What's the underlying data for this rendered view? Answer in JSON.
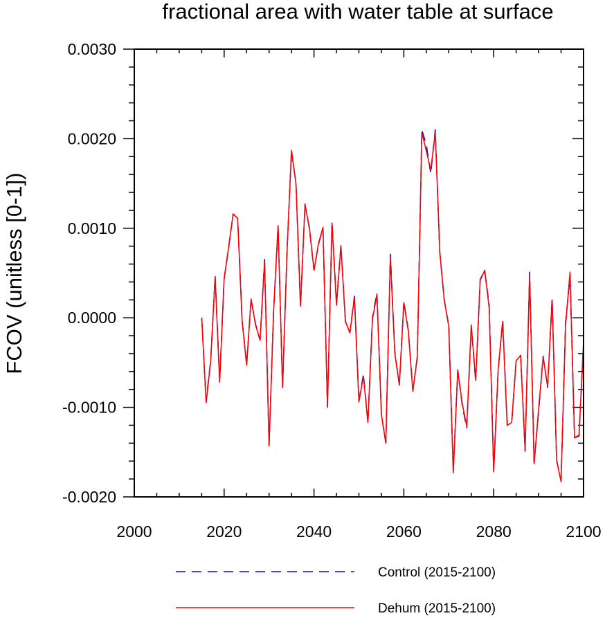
{
  "chart_data": {
    "type": "line",
    "title": "fractional area with water table at surface",
    "ylabel": "FCOV  (unitless [0-1])",
    "xlabel": "",
    "xlim": [
      2000,
      2100
    ],
    "ylim": [
      -0.002,
      0.003
    ],
    "x_ticks": [
      2000,
      2020,
      2040,
      2060,
      2080,
      2100
    ],
    "x_tick_labels": [
      "2000",
      "2020",
      "2040",
      "2060",
      "2080",
      "2100"
    ],
    "y_ticks": [
      -0.002,
      -0.001,
      0.0,
      0.001,
      0.002,
      0.003
    ],
    "y_tick_labels": [
      "-0.0020",
      "-0.0010",
      "0.0000",
      "0.0010",
      "0.0020",
      "0.0030"
    ],
    "grid": false,
    "legend_position": "bottom",
    "x": [
      2015,
      2016,
      2017,
      2018,
      2019,
      2020,
      2021,
      2022,
      2023,
      2024,
      2025,
      2026,
      2027,
      2028,
      2029,
      2030,
      2031,
      2032,
      2033,
      2034,
      2035,
      2036,
      2037,
      2038,
      2039,
      2040,
      2041,
      2042,
      2043,
      2044,
      2045,
      2046,
      2047,
      2048,
      2049,
      2050,
      2051,
      2052,
      2053,
      2054,
      2055,
      2056,
      2057,
      2058,
      2059,
      2060,
      2061,
      2062,
      2063,
      2064,
      2065,
      2066,
      2067,
      2068,
      2069,
      2070,
      2071,
      2072,
      2073,
      2074,
      2075,
      2076,
      2077,
      2078,
      2079,
      2080,
      2081,
      2082,
      2083,
      2084,
      2085,
      2086,
      2087,
      2088,
      2089,
      2090,
      2091,
      2092,
      2093,
      2094,
      2095,
      2096,
      2097,
      2098,
      2099,
      2100
    ],
    "series": [
      {
        "name": "Control (2015-2100)",
        "color": "#0000ff",
        "dash": "dashed",
        "values": [
          0.0,
          -0.00093,
          -0.00048,
          0.00046,
          -0.0007,
          0.00043,
          0.00078,
          0.00116,
          0.00111,
          -3e-05,
          -0.00052,
          0.0002,
          -7e-05,
          -0.00025,
          0.00065,
          -0.00143,
          7e-05,
          0.00102,
          -0.00078,
          0.00075,
          0.00186,
          0.0015,
          0.00013,
          0.00127,
          0.00099,
          0.00053,
          0.00082,
          0.001,
          -0.00099,
          0.00107,
          0.00016,
          0.00081,
          -4e-05,
          -0.00016,
          0.00024,
          -0.00093,
          -0.00063,
          -0.00117,
          0.0,
          0.00028,
          -0.00108,
          -0.0014,
          0.00071,
          -0.00038,
          -0.00075,
          0.00018,
          -0.00014,
          -0.00082,
          -0.00043,
          0.0021,
          0.00193,
          0.00161,
          0.0021,
          0.00073,
          0.00019,
          -8e-05,
          -0.00171,
          -0.00058,
          -0.00098,
          -0.00123,
          -0.0001,
          -0.00071,
          0.00043,
          0.00053,
          0.00014,
          -0.0017,
          -0.00058,
          -3e-05,
          -0.0012,
          -0.00117,
          -0.00048,
          -0.00042,
          -0.00149,
          0.00051,
          -0.00162,
          -0.00105,
          -0.00043,
          -0.00078,
          0.00022,
          -0.00159,
          -0.00182,
          -5e-05,
          0.00045,
          -0.00134,
          -0.00132,
          -0.00027
        ]
      },
      {
        "name": "Dehum (2015-2100)",
        "color": "#ff0000",
        "dash": "solid",
        "values": [
          0.0,
          -0.00095,
          -0.00049,
          0.00046,
          -0.00072,
          0.00044,
          0.00079,
          0.00116,
          0.00111,
          -4e-05,
          -0.00053,
          0.00021,
          -8e-05,
          -0.00025,
          0.00063,
          -0.00143,
          6e-05,
          0.00103,
          -0.00077,
          0.00075,
          0.00187,
          0.00149,
          0.00013,
          0.00126,
          0.001,
          0.00053,
          0.00083,
          0.00101,
          -0.001,
          0.00106,
          0.00014,
          0.0008,
          -4e-05,
          -0.00017,
          0.00023,
          -0.00094,
          -0.00065,
          -0.00117,
          -2e-05,
          0.00026,
          -0.00108,
          -0.0014,
          0.00068,
          -0.0004,
          -0.00075,
          0.00017,
          -0.00015,
          -0.00082,
          -0.00044,
          0.00207,
          0.00186,
          0.00165,
          0.00207,
          0.00074,
          0.0002,
          -0.0001,
          -0.00173,
          -0.00059,
          -0.00096,
          -0.00121,
          -8e-05,
          -0.0007,
          0.00042,
          0.00053,
          0.00011,
          -0.00172,
          -0.00057,
          -4e-05,
          -0.0012,
          -0.00117,
          -0.00048,
          -0.00042,
          -0.00148,
          0.00048,
          -0.00163,
          -0.00102,
          -0.00044,
          -0.00077,
          0.0002,
          -0.00159,
          -0.00183,
          -9e-05,
          0.00051,
          -0.00134,
          -0.00131,
          -0.00027
        ]
      }
    ]
  }
}
